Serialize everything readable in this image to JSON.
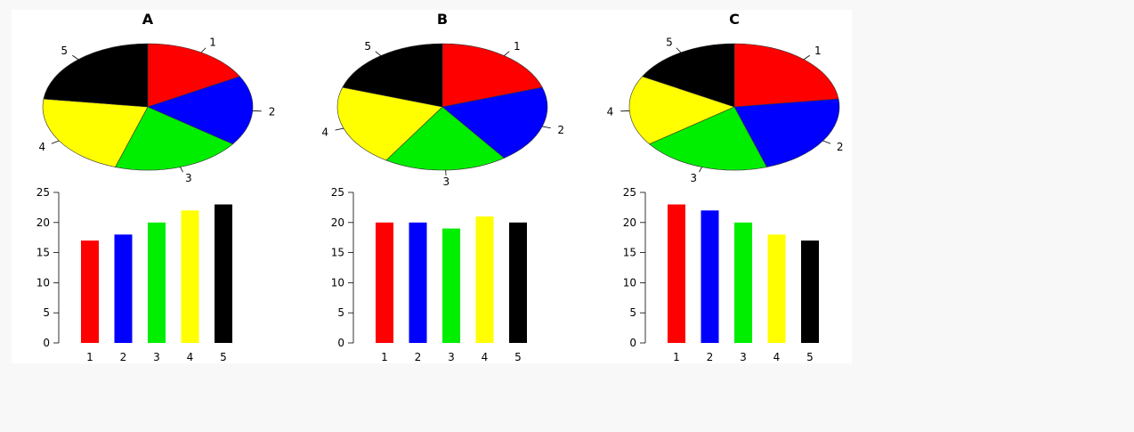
{
  "chart_data": [
    {
      "panel": "A",
      "pie": {
        "type": "pie",
        "labels": [
          "1",
          "2",
          "3",
          "4",
          "5"
        ],
        "values": [
          17,
          18,
          20,
          22,
          23
        ]
      },
      "bar": {
        "type": "bar",
        "categories": [
          "1",
          "2",
          "3",
          "4",
          "5"
        ],
        "values": [
          17,
          18,
          20,
          22,
          23
        ],
        "ylim": [
          0,
          25
        ],
        "yticks": [
          "0",
          "5",
          "10",
          "15",
          "20",
          "25"
        ]
      }
    },
    {
      "panel": "B",
      "pie": {
        "type": "pie",
        "labels": [
          "1",
          "2",
          "3",
          "4",
          "5"
        ],
        "values": [
          20,
          20,
          19,
          21,
          20
        ]
      },
      "bar": {
        "type": "bar",
        "categories": [
          "1",
          "2",
          "3",
          "4",
          "5"
        ],
        "values": [
          20,
          20,
          19,
          21,
          20
        ],
        "ylim": [
          0,
          25
        ],
        "yticks": [
          "0",
          "5",
          "10",
          "15",
          "20",
          "25"
        ]
      }
    },
    {
      "panel": "C",
      "pie": {
        "type": "pie",
        "labels": [
          "1",
          "2",
          "3",
          "4",
          "5"
        ],
        "values": [
          23,
          22,
          20,
          18,
          17
        ]
      },
      "bar": {
        "type": "bar",
        "categories": [
          "1",
          "2",
          "3",
          "4",
          "5"
        ],
        "values": [
          23,
          22,
          20,
          18,
          17
        ],
        "ylim": [
          0,
          25
        ],
        "yticks": [
          "0",
          "5",
          "10",
          "15",
          "20",
          "25"
        ]
      }
    }
  ],
  "colors": [
    "#ff0000",
    "#0000ff",
    "#00ee00",
    "#ffff00",
    "#000000"
  ]
}
